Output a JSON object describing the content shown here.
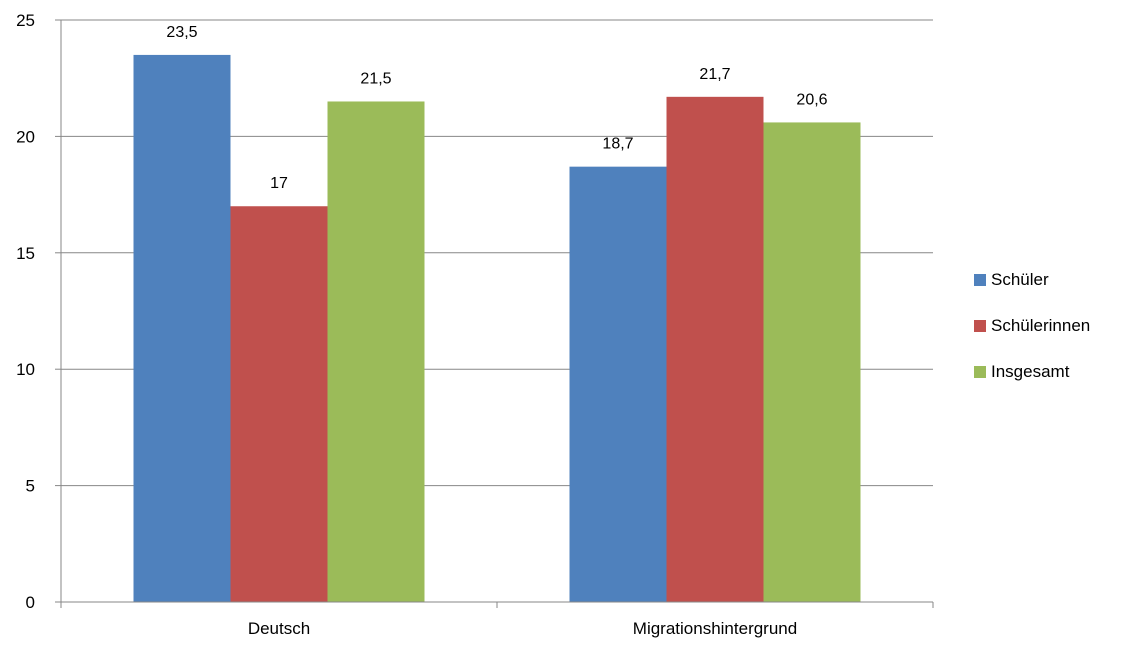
{
  "chart_data": {
    "type": "bar",
    "categories": [
      "Deutsch",
      "Migrationshintergrund"
    ],
    "series": [
      {
        "name": "Schüler",
        "values": [
          23.5,
          18.7
        ],
        "labels": [
          "23,5",
          "18,7"
        ],
        "color": "#4F81BD"
      },
      {
        "name": "Schülerinnen",
        "values": [
          17,
          21.7
        ],
        "labels": [
          "17",
          "21,7"
        ],
        "color": "#C0504D"
      },
      {
        "name": "Insgesamt",
        "values": [
          21.5,
          20.6
        ],
        "labels": [
          "21,5",
          "20,6"
        ],
        "color": "#9BBB59"
      }
    ],
    "yticks": [
      "0",
      "5",
      "10",
      "15",
      "20",
      "25"
    ],
    "ylim": [
      0,
      25
    ],
    "grid": true,
    "legend_position": "right"
  }
}
